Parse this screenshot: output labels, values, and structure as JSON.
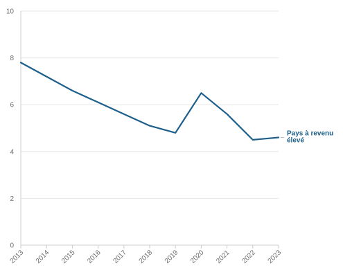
{
  "chart_data": {
    "type": "line",
    "x": [
      2013,
      2014,
      2015,
      2016,
      2017,
      2018,
      2019,
      2020,
      2021,
      2022,
      2023
    ],
    "series": [
      {
        "name": "Pays à revenu élevé",
        "label_lines": [
          "Pays à revenu",
          "élevé"
        ],
        "values": [
          7.8,
          7.2,
          6.6,
          6.1,
          5.6,
          5.1,
          4.8,
          6.5,
          5.6,
          4.5,
          4.6
        ],
        "color": "#1d5f8a"
      }
    ],
    "y_ticks": [
      0,
      2,
      4,
      6,
      8,
      10
    ],
    "x_ticks": [
      "2013",
      "2014",
      "2015",
      "2016",
      "2017",
      "2018",
      "2019",
      "2020",
      "2021",
      "2022",
      "2023"
    ],
    "ylim": [
      0,
      10
    ],
    "xlim": [
      2013,
      2023
    ],
    "grid": true,
    "colors": {
      "grid": "#e6e6e6",
      "axis": "#cccccc",
      "tick_text": "#6b6b6b"
    },
    "title": "",
    "xlabel": "",
    "ylabel": ""
  }
}
